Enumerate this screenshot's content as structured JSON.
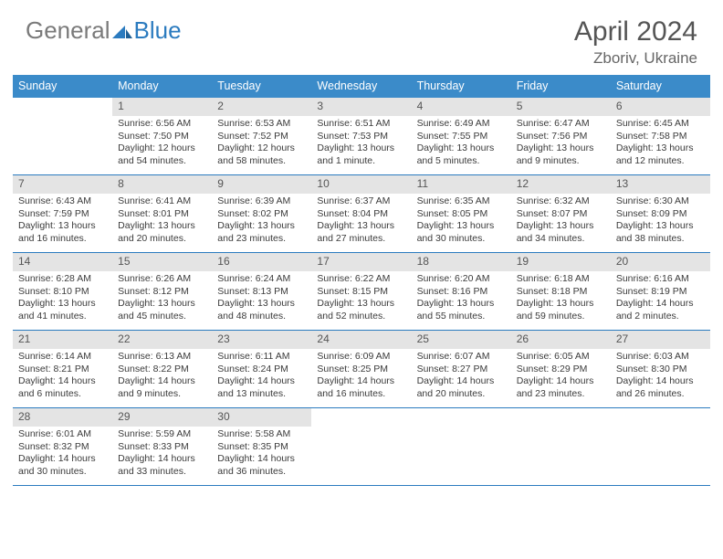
{
  "logo": {
    "part1": "General",
    "part2": "Blue"
  },
  "title": "April 2024",
  "location": "Zboriv, Ukraine",
  "colors": {
    "header_bar": "#3b8bc9",
    "header_text": "#ffffff",
    "daynum_bg": "#e4e4e4",
    "rule": "#2b7bbf",
    "logo_gray": "#7a7a7a",
    "logo_blue": "#2b7bbf",
    "title_gray": "#555555"
  },
  "weekdays": [
    "Sunday",
    "Monday",
    "Tuesday",
    "Wednesday",
    "Thursday",
    "Friday",
    "Saturday"
  ],
  "weeks": [
    [
      {
        "n": "",
        "sr": "",
        "ss": "",
        "dl": ""
      },
      {
        "n": "1",
        "sr": "6:56 AM",
        "ss": "7:50 PM",
        "dl": "12 hours and 54 minutes."
      },
      {
        "n": "2",
        "sr": "6:53 AM",
        "ss": "7:52 PM",
        "dl": "12 hours and 58 minutes."
      },
      {
        "n": "3",
        "sr": "6:51 AM",
        "ss": "7:53 PM",
        "dl": "13 hours and 1 minute."
      },
      {
        "n": "4",
        "sr": "6:49 AM",
        "ss": "7:55 PM",
        "dl": "13 hours and 5 minutes."
      },
      {
        "n": "5",
        "sr": "6:47 AM",
        "ss": "7:56 PM",
        "dl": "13 hours and 9 minutes."
      },
      {
        "n": "6",
        "sr": "6:45 AM",
        "ss": "7:58 PM",
        "dl": "13 hours and 12 minutes."
      }
    ],
    [
      {
        "n": "7",
        "sr": "6:43 AM",
        "ss": "7:59 PM",
        "dl": "13 hours and 16 minutes."
      },
      {
        "n": "8",
        "sr": "6:41 AM",
        "ss": "8:01 PM",
        "dl": "13 hours and 20 minutes."
      },
      {
        "n": "9",
        "sr": "6:39 AM",
        "ss": "8:02 PM",
        "dl": "13 hours and 23 minutes."
      },
      {
        "n": "10",
        "sr": "6:37 AM",
        "ss": "8:04 PM",
        "dl": "13 hours and 27 minutes."
      },
      {
        "n": "11",
        "sr": "6:35 AM",
        "ss": "8:05 PM",
        "dl": "13 hours and 30 minutes."
      },
      {
        "n": "12",
        "sr": "6:32 AM",
        "ss": "8:07 PM",
        "dl": "13 hours and 34 minutes."
      },
      {
        "n": "13",
        "sr": "6:30 AM",
        "ss": "8:09 PM",
        "dl": "13 hours and 38 minutes."
      }
    ],
    [
      {
        "n": "14",
        "sr": "6:28 AM",
        "ss": "8:10 PM",
        "dl": "13 hours and 41 minutes."
      },
      {
        "n": "15",
        "sr": "6:26 AM",
        "ss": "8:12 PM",
        "dl": "13 hours and 45 minutes."
      },
      {
        "n": "16",
        "sr": "6:24 AM",
        "ss": "8:13 PM",
        "dl": "13 hours and 48 minutes."
      },
      {
        "n": "17",
        "sr": "6:22 AM",
        "ss": "8:15 PM",
        "dl": "13 hours and 52 minutes."
      },
      {
        "n": "18",
        "sr": "6:20 AM",
        "ss": "8:16 PM",
        "dl": "13 hours and 55 minutes."
      },
      {
        "n": "19",
        "sr": "6:18 AM",
        "ss": "8:18 PM",
        "dl": "13 hours and 59 minutes."
      },
      {
        "n": "20",
        "sr": "6:16 AM",
        "ss": "8:19 PM",
        "dl": "14 hours and 2 minutes."
      }
    ],
    [
      {
        "n": "21",
        "sr": "6:14 AM",
        "ss": "8:21 PM",
        "dl": "14 hours and 6 minutes."
      },
      {
        "n": "22",
        "sr": "6:13 AM",
        "ss": "8:22 PM",
        "dl": "14 hours and 9 minutes."
      },
      {
        "n": "23",
        "sr": "6:11 AM",
        "ss": "8:24 PM",
        "dl": "14 hours and 13 minutes."
      },
      {
        "n": "24",
        "sr": "6:09 AM",
        "ss": "8:25 PM",
        "dl": "14 hours and 16 minutes."
      },
      {
        "n": "25",
        "sr": "6:07 AM",
        "ss": "8:27 PM",
        "dl": "14 hours and 20 minutes."
      },
      {
        "n": "26",
        "sr": "6:05 AM",
        "ss": "8:29 PM",
        "dl": "14 hours and 23 minutes."
      },
      {
        "n": "27",
        "sr": "6:03 AM",
        "ss": "8:30 PM",
        "dl": "14 hours and 26 minutes."
      }
    ],
    [
      {
        "n": "28",
        "sr": "6:01 AM",
        "ss": "8:32 PM",
        "dl": "14 hours and 30 minutes."
      },
      {
        "n": "29",
        "sr": "5:59 AM",
        "ss": "8:33 PM",
        "dl": "14 hours and 33 minutes."
      },
      {
        "n": "30",
        "sr": "5:58 AM",
        "ss": "8:35 PM",
        "dl": "14 hours and 36 minutes."
      },
      {
        "n": "",
        "sr": "",
        "ss": "",
        "dl": ""
      },
      {
        "n": "",
        "sr": "",
        "ss": "",
        "dl": ""
      },
      {
        "n": "",
        "sr": "",
        "ss": "",
        "dl": ""
      },
      {
        "n": "",
        "sr": "",
        "ss": "",
        "dl": ""
      }
    ]
  ],
  "labels": {
    "sunrise": "Sunrise:",
    "sunset": "Sunset:",
    "daylight": "Daylight:"
  }
}
